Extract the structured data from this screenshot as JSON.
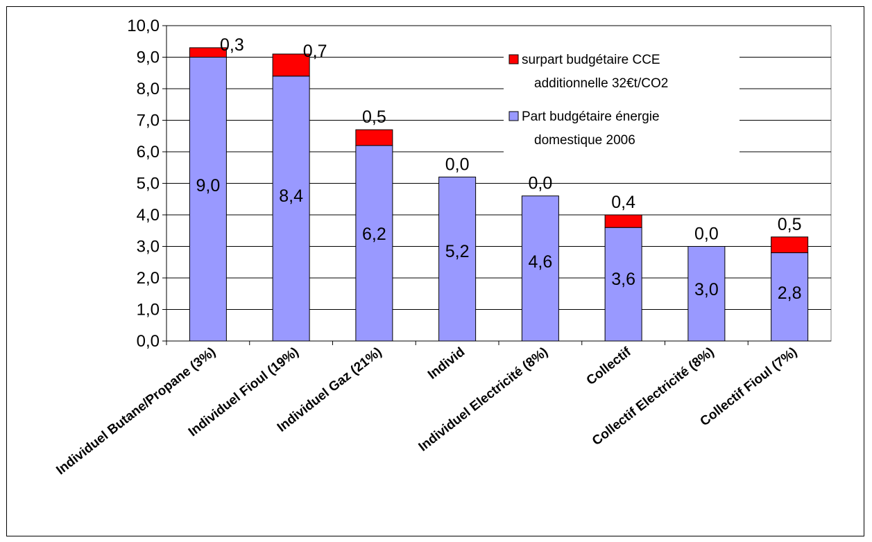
{
  "chart_data": {
    "type": "bar",
    "stacked": true,
    "categories": [
      "Individuel Butane/Propane (3%)",
      "Individuel Fioul (19%)",
      "Individuel Gaz (21%)",
      "Individ",
      "Individuel Electricité (8%)",
      "Collectif",
      "Collectif Electricité (8%)",
      "Collectif Fioul (7%)"
    ],
    "series": [
      {
        "name": "Part budgétaire énergie domestique 2006",
        "color": "#9999ff",
        "values": [
          9.0,
          8.4,
          6.2,
          5.2,
          4.6,
          3.6,
          3.0,
          2.8
        ],
        "labels": [
          "9,0",
          "8,4",
          "6,2",
          "5,2",
          "4,6",
          "3,6",
          "3,0",
          "2,8"
        ]
      },
      {
        "name": "surpart budgétaire CCE additionnelle 32€t/CO2",
        "color": "#ff0000",
        "values": [
          0.3,
          0.7,
          0.5,
          0.0,
          0.0,
          0.4,
          0.0,
          0.5
        ],
        "labels": [
          "0,3",
          "0,7",
          "0,5",
          "0,0",
          "0,0",
          "0,4",
          "0,0",
          "0,5"
        ]
      }
    ],
    "ylim": [
      0,
      10
    ],
    "yticks": [
      "0,0",
      "1,0",
      "2,0",
      "3,0",
      "4,0",
      "5,0",
      "6,0",
      "7,0",
      "8,0",
      "9,0",
      "10,0"
    ],
    "grid": true,
    "legend": {
      "position": "top-right",
      "entries": [
        {
          "series": 1,
          "lines": [
            "surpart budgétaire CCE",
            "additionnelle 32€t/CO2"
          ]
        },
        {
          "series": 0,
          "lines": [
            "Part budgétaire énergie",
            "domestique 2006"
          ]
        }
      ]
    },
    "title": "",
    "xlabel": "",
    "ylabel": ""
  }
}
